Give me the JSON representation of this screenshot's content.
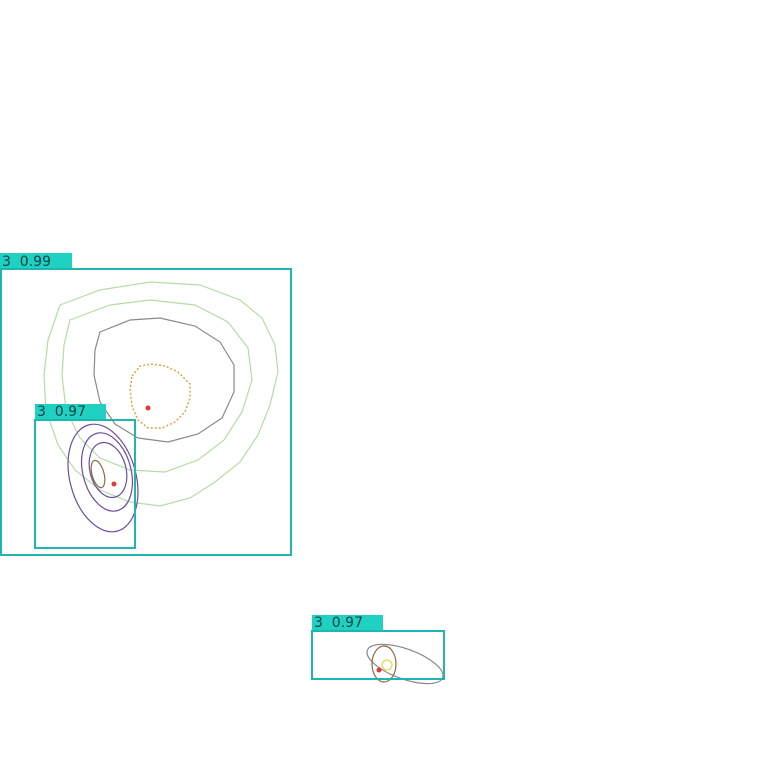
{
  "colors": {
    "box": "#1fb5b0",
    "label_bg": "#1fd1c0",
    "label_text": "#0a3f4a",
    "center_dot": "#e53935",
    "contour_green": "#b7dba6",
    "contour_gray": "#8a8a8a",
    "contour_purple": "#6a4fa0",
    "contour_brown": "#8b6a4a",
    "contour_gold": "#d8a23a",
    "contour_yellow": "#e6d64a"
  },
  "detections": [
    {
      "id": "det-1",
      "label": "3  0.99"
    },
    {
      "id": "det-2",
      "label": "3  0.97"
    },
    {
      "id": "det-3",
      "label": "3  0.97"
    }
  ]
}
